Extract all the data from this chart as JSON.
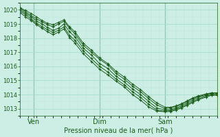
{
  "title": "Pression niveau de la mer( hPa )",
  "bg_color": "#cceee4",
  "grid_major_color": "#aaddcc",
  "grid_minor_color": "#c0e8dc",
  "line_color": "#1a5c1a",
  "marker": "+",
  "ylim": [
    1012.5,
    1020.5
  ],
  "yticks": [
    1013,
    1014,
    1015,
    1016,
    1017,
    1018,
    1019,
    1020
  ],
  "xtick_labels": [
    "Ven",
    "Dim",
    "Sam"
  ],
  "xtick_positions": [
    10,
    58,
    106
  ],
  "xlim": [
    0,
    144
  ],
  "vlines": [
    10,
    58,
    106
  ],
  "lines": [
    [
      0,
      1020.1,
      4,
      1019.85,
      8,
      1019.6,
      12,
      1019.35,
      16,
      1019.15,
      20,
      1018.95,
      24,
      1018.8,
      28,
      1019.0,
      32,
      1019.2,
      36,
      1018.7,
      40,
      1018.3,
      46,
      1017.5,
      52,
      1017.0,
      58,
      1016.5,
      64,
      1016.1,
      70,
      1015.5,
      76,
      1015.1,
      82,
      1014.6,
      88,
      1014.2,
      94,
      1013.7,
      100,
      1013.25,
      106,
      1013.0,
      110,
      1013.05,
      114,
      1013.15,
      118,
      1013.3,
      122,
      1013.5,
      126,
      1013.7,
      130,
      1013.85,
      136,
      1014.0,
      140,
      1014.1,
      144,
      1014.1
    ],
    [
      0,
      1020.15,
      4,
      1019.95,
      8,
      1019.75,
      12,
      1019.5,
      16,
      1019.25,
      20,
      1019.05,
      24,
      1018.95,
      28,
      1019.12,
      32,
      1019.3,
      36,
      1018.8,
      40,
      1018.45,
      46,
      1017.65,
      52,
      1017.15,
      58,
      1016.6,
      64,
      1016.2,
      70,
      1015.65,
      76,
      1015.25,
      82,
      1014.75,
      88,
      1014.35,
      94,
      1013.85,
      100,
      1013.4,
      106,
      1013.1,
      110,
      1013.1,
      114,
      1013.2,
      118,
      1013.35,
      122,
      1013.55,
      126,
      1013.75,
      130,
      1013.9,
      136,
      1014.05,
      140,
      1014.12,
      144,
      1014.12
    ],
    [
      0,
      1020.0,
      4,
      1019.75,
      8,
      1019.5,
      12,
      1019.2,
      16,
      1019.0,
      20,
      1018.75,
      24,
      1018.55,
      28,
      1018.7,
      32,
      1019.0,
      36,
      1018.45,
      40,
      1018.1,
      46,
      1017.3,
      52,
      1016.8,
      58,
      1016.2,
      64,
      1015.85,
      70,
      1015.3,
      76,
      1014.9,
      82,
      1014.4,
      88,
      1014.0,
      94,
      1013.5,
      100,
      1013.05,
      106,
      1012.9,
      110,
      1012.92,
      114,
      1013.05,
      118,
      1013.2,
      122,
      1013.4,
      126,
      1013.6,
      130,
      1013.78,
      136,
      1013.95,
      140,
      1014.05,
      144,
      1014.05
    ],
    [
      0,
      1019.9,
      4,
      1019.65,
      8,
      1019.35,
      12,
      1019.05,
      16,
      1018.82,
      20,
      1018.6,
      24,
      1018.4,
      28,
      1018.55,
      32,
      1018.8,
      36,
      1018.2,
      40,
      1017.85,
      46,
      1017.1,
      52,
      1016.55,
      58,
      1016.0,
      64,
      1015.6,
      70,
      1015.1,
      76,
      1014.7,
      82,
      1014.2,
      88,
      1013.8,
      94,
      1013.3,
      100,
      1012.9,
      106,
      1012.82,
      110,
      1012.85,
      114,
      1012.97,
      118,
      1013.12,
      122,
      1013.3,
      126,
      1013.5,
      130,
      1013.68,
      136,
      1013.88,
      140,
      1013.98,
      144,
      1013.98
    ],
    [
      0,
      1019.8,
      4,
      1019.5,
      8,
      1019.25,
      12,
      1018.95,
      16,
      1018.7,
      20,
      1018.45,
      24,
      1018.25,
      28,
      1018.42,
      32,
      1018.65,
      36,
      1018.05,
      40,
      1017.65,
      46,
      1016.9,
      52,
      1016.35,
      58,
      1015.8,
      64,
      1015.4,
      70,
      1014.95,
      76,
      1014.55,
      82,
      1014.0,
      88,
      1013.6,
      94,
      1013.12,
      100,
      1012.82,
      106,
      1012.78,
      110,
      1012.8,
      114,
      1012.9,
      118,
      1013.05,
      122,
      1013.23,
      126,
      1013.42,
      130,
      1013.62,
      136,
      1013.82,
      140,
      1013.95,
      144,
      1013.95
    ]
  ]
}
